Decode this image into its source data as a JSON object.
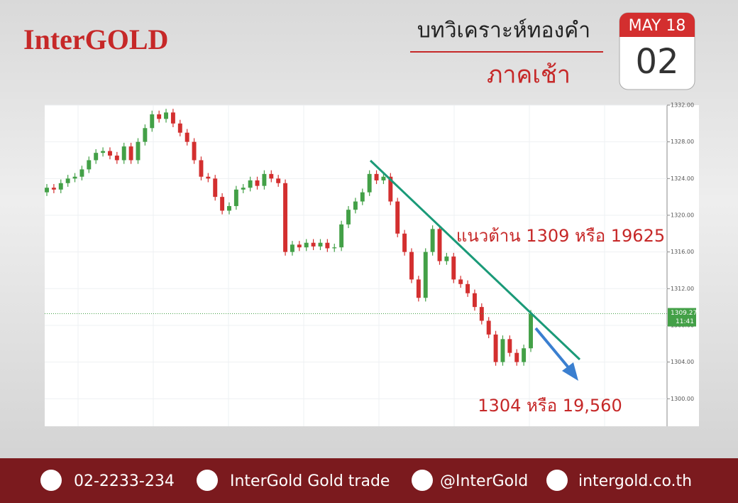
{
  "header": {
    "brand": "InterGOLD",
    "title": "บทวิเคราะห์ทองคำ",
    "session": "ภาคเช้า",
    "month": "MAY 18",
    "day": "02"
  },
  "chart_data": {
    "type": "candlestick",
    "open": [
      1322.5,
      1323,
      1322.8,
      1323.5,
      1324,
      1324.2,
      1325,
      1326,
      1326.8,
      1327,
      1326.5,
      1326,
      1327.5,
      1326,
      1328,
      1329.5,
      1331,
      1330.5,
      1331.2,
      1330,
      1329,
      1328,
      1326,
      1324.2,
      1324,
      1322,
      1320.5,
      1321,
      1322.8,
      1323,
      1323.8,
      1323.2,
      1324.5,
      1324,
      1323.5,
      1316,
      1316.8,
      1316.5,
      1317,
      1316.6,
      1317,
      1316.4,
      1316.5,
      1319,
      1320.6,
      1321.5,
      1322.5,
      1324.5,
      1323.8,
      1324.2,
      1321.5,
      1318,
      1316,
      1313,
      1311,
      1316,
      1318.5,
      1315,
      1315.5,
      1313,
      1312.5,
      1311.5,
      1310,
      1308.5,
      1307,
      1304,
      1306.5,
      1305,
      1304,
      1305.5
    ],
    "high": [
      1323.4,
      1323.4,
      1323.9,
      1324.4,
      1324.6,
      1325.4,
      1326.4,
      1327.2,
      1327.4,
      1327.4,
      1326.9,
      1327.9,
      1327.9,
      1328.4,
      1329.9,
      1331.4,
      1331.4,
      1331.6,
      1331.6,
      1330.4,
      1329.4,
      1328.4,
      1326.4,
      1324.6,
      1324.4,
      1322.4,
      1321.4,
      1323.2,
      1323.4,
      1324.2,
      1324.2,
      1324.9,
      1324.9,
      1324.4,
      1323.9,
      1317.2,
      1317.2,
      1317.4,
      1317.4,
      1317.4,
      1317.4,
      1316.9,
      1319.4,
      1321,
      1321.9,
      1322.9,
      1324.9,
      1324.9,
      1324.6,
      1324.6,
      1321.9,
      1318.4,
      1316.4,
      1313.4,
      1316.4,
      1318.9,
      1318.9,
      1315.9,
      1315.9,
      1313.4,
      1312.9,
      1311.9,
      1310.4,
      1308.9,
      1307.4,
      1306.9,
      1306.9,
      1305.4,
      1305.9,
      1309.67
    ],
    "low": [
      1322.1,
      1322.4,
      1322.4,
      1323.1,
      1323.6,
      1323.8,
      1324.6,
      1325.6,
      1326.4,
      1326.1,
      1325.6,
      1325.6,
      1325.6,
      1325.6,
      1327.6,
      1329.1,
      1330.1,
      1330.1,
      1329.6,
      1328.6,
      1327.6,
      1325.6,
      1323.8,
      1323.6,
      1321.6,
      1320.1,
      1320.1,
      1320.6,
      1322.4,
      1322.6,
      1322.8,
      1322.8,
      1323.6,
      1323.1,
      1315.6,
      1315.6,
      1316.1,
      1316.1,
      1316.2,
      1316.2,
      1316,
      1316,
      1316.1,
      1318.6,
      1320.2,
      1321.1,
      1322.1,
      1323.4,
      1323.4,
      1321.1,
      1317.6,
      1315.6,
      1312.6,
      1310.6,
      1310.6,
      1315.6,
      1314.6,
      1314.6,
      1312.6,
      1312.1,
      1311.1,
      1309.6,
      1308.1,
      1306.6,
      1303.6,
      1303.6,
      1304.6,
      1303.6,
      1303.6,
      1305.1
    ],
    "close": [
      1323,
      1322.8,
      1323.5,
      1324,
      1324.2,
      1325,
      1326,
      1326.8,
      1327,
      1326.5,
      1326,
      1327.5,
      1326,
      1328,
      1329.5,
      1331,
      1330.5,
      1331.2,
      1330,
      1329,
      1328,
      1326,
      1324.2,
      1324,
      1322,
      1320.5,
      1321,
      1322.8,
      1323,
      1323.8,
      1323.2,
      1324.5,
      1324,
      1323.5,
      1316,
      1316.8,
      1316.5,
      1317,
      1316.6,
      1317,
      1316.4,
      1316.5,
      1319,
      1320.6,
      1321.5,
      1322.5,
      1324.5,
      1323.8,
      1324.2,
      1321.5,
      1318,
      1316,
      1313,
      1311,
      1316,
      1318.5,
      1315,
      1315.5,
      1313,
      1312.5,
      1311.5,
      1310,
      1308.5,
      1307,
      1304,
      1306.5,
      1305,
      1304,
      1305.5,
      1309.27
    ],
    "up_color": "#43a047",
    "down_color": "#d32f2f",
    "ylim": [
      1297,
      1332
    ],
    "yticks": [
      {
        "value": 1300,
        "label": "1300.00"
      },
      {
        "value": 1304,
        "label": "1304.00"
      },
      {
        "value": 1308,
        "label": "1308.00"
      },
      {
        "value": 1312,
        "label": "1312.00"
      },
      {
        "value": 1316,
        "label": "1316.00"
      },
      {
        "value": 1320,
        "label": "1320.00"
      },
      {
        "value": 1324,
        "label": "1324.00"
      },
      {
        "value": 1328,
        "label": "1328.00"
      },
      {
        "value": 1332,
        "label": "1332.00"
      }
    ],
    "grid": true,
    "last_price": {
      "value": 1309.27,
      "label": "1309.27",
      "time": "11:41"
    },
    "annotations": [
      "แนวต้าน 1309 หรือ 19625",
      "1304 หรือ 19,560"
    ]
  },
  "footer": {
    "phone": "02-2233-234",
    "facebook": "InterGold Gold trade",
    "line": "@InterGold",
    "web": "intergold.co.th"
  }
}
